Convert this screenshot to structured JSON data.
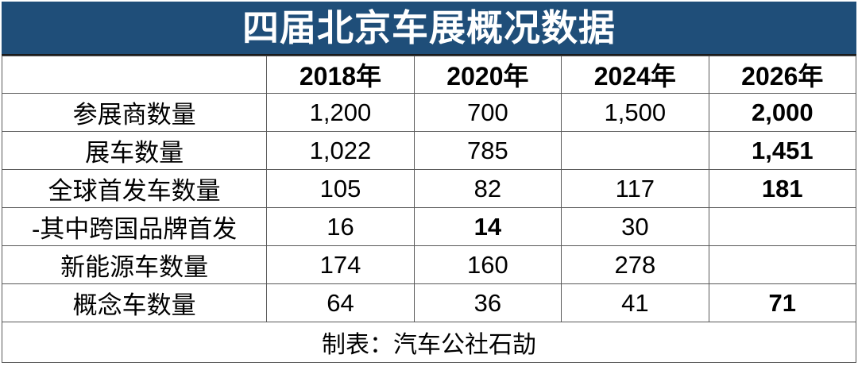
{
  "title": "四届北京车展概况数据",
  "table": {
    "columns": [
      "",
      "2018年",
      "2020年",
      "2024年",
      "2026年"
    ],
    "rows": [
      {
        "label": "参展商数量",
        "values": [
          "1,200",
          "700",
          "1,500",
          "2,000"
        ],
        "bold": [
          false,
          false,
          false,
          true
        ]
      },
      {
        "label": "展车数量",
        "values": [
          "1,022",
          "785",
          "",
          "1,451"
        ],
        "bold": [
          false,
          false,
          false,
          true
        ]
      },
      {
        "label": "全球首发车数量",
        "values": [
          "105",
          "82",
          "117",
          "181"
        ],
        "bold": [
          false,
          false,
          false,
          true
        ]
      },
      {
        "label": "-其中跨国品牌首发",
        "values": [
          "16",
          "14",
          "30",
          ""
        ],
        "bold": [
          false,
          true,
          false,
          false
        ]
      },
      {
        "label": "新能源车数量",
        "values": [
          "174",
          "160",
          "278",
          ""
        ],
        "bold": [
          false,
          false,
          false,
          false
        ]
      },
      {
        "label": "概念车数量",
        "values": [
          "64",
          "36",
          "41",
          "71"
        ],
        "bold": [
          false,
          false,
          false,
          true
        ]
      }
    ],
    "footer": "制表：汽车公社石劼"
  },
  "colors": {
    "title_bg": "#1F4E79",
    "title_text": "#FFFFFF",
    "border": "#595959",
    "cell_text": "#000000"
  },
  "chart_data": {
    "type": "table",
    "title": "四届北京车展概况数据",
    "categories": [
      "2018年",
      "2020年",
      "2024年",
      "2026年"
    ],
    "series": [
      {
        "name": "参展商数量",
        "values": [
          1200,
          700,
          1500,
          2000
        ]
      },
      {
        "name": "展车数量",
        "values": [
          1022,
          785,
          null,
          1451
        ]
      },
      {
        "name": "全球首发车数量",
        "values": [
          105,
          82,
          117,
          181
        ]
      },
      {
        "name": "-其中跨国品牌首发",
        "values": [
          16,
          14,
          30,
          null
        ]
      },
      {
        "name": "新能源车数量",
        "values": [
          174,
          160,
          278,
          null
        ]
      },
      {
        "name": "概念车数量",
        "values": [
          64,
          36,
          41,
          71
        ]
      }
    ],
    "annotations": [
      "制表：汽车公社石劼"
    ]
  }
}
